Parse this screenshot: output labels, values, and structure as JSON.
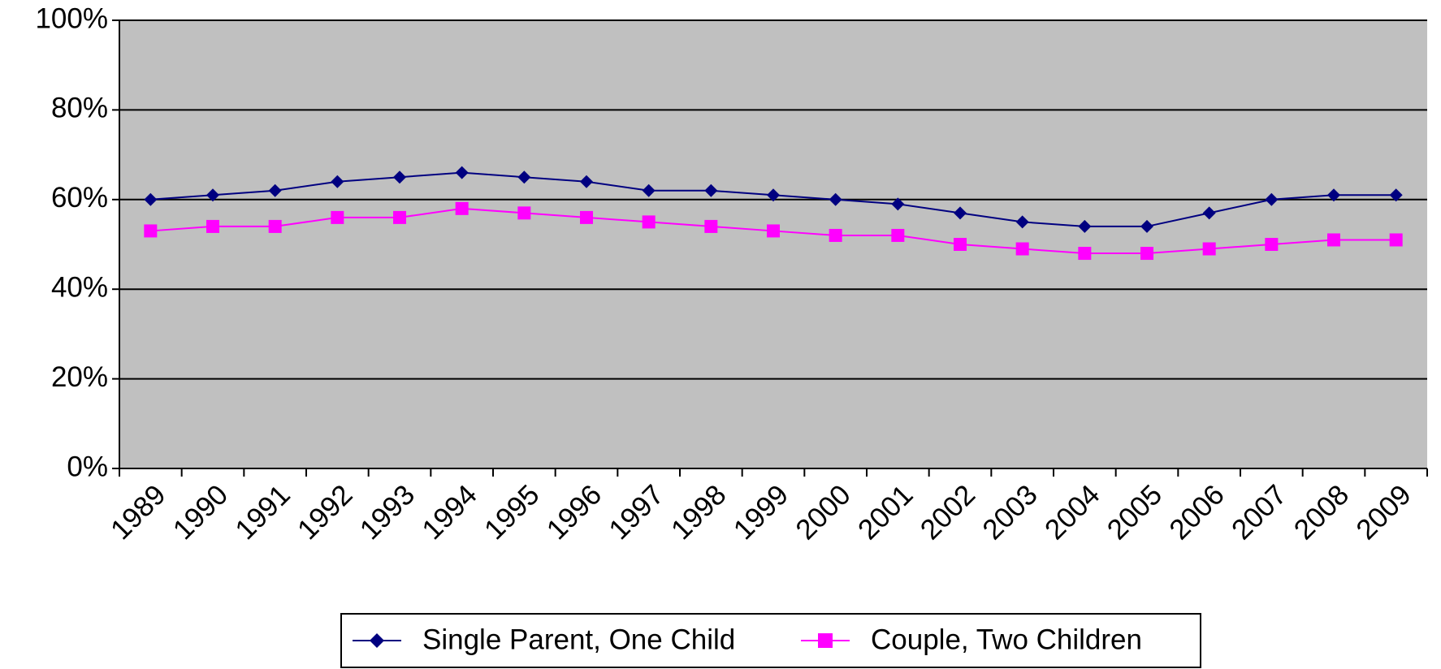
{
  "chart_data": {
    "type": "line",
    "categories": [
      "1989",
      "1990",
      "1991",
      "1992",
      "1993",
      "1994",
      "1995",
      "1996",
      "1997",
      "1998",
      "1999",
      "2000",
      "2001",
      "2002",
      "2003",
      "2004",
      "2005",
      "2006",
      "2007",
      "2008",
      "2009"
    ],
    "series": [
      {
        "name": "Single Parent, One Child",
        "color": "#000080",
        "marker": "diamond",
        "values": [
          60,
          61,
          62,
          64,
          65,
          66,
          65,
          64,
          62,
          62,
          61,
          60,
          59,
          57,
          55,
          54,
          54,
          57,
          60,
          61,
          61
        ]
      },
      {
        "name": "Couple, Two Children",
        "color": "#ff00ff",
        "marker": "square",
        "values": [
          53,
          54,
          54,
          56,
          56,
          58,
          57,
          56,
          55,
          54,
          53,
          52,
          52,
          50,
          49,
          48,
          48,
          49,
          50,
          51,
          51
        ]
      }
    ],
    "ylim": [
      0,
      100
    ],
    "yticks": [
      {
        "value": 0,
        "label": "0%"
      },
      {
        "value": 20,
        "label": "20%"
      },
      {
        "value": 40,
        "label": "40%"
      },
      {
        "value": 60,
        "label": "60%"
      },
      {
        "value": 80,
        "label": "80%"
      },
      {
        "value": 100,
        "label": "100%"
      }
    ],
    "grid": true,
    "legend": "bottom"
  }
}
